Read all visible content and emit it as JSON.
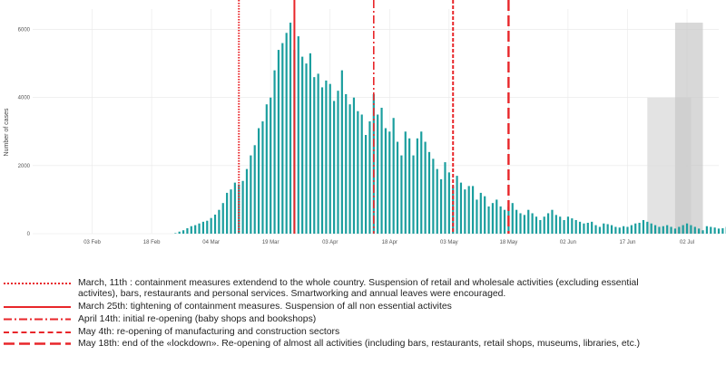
{
  "chart_data": {
    "type": "bar",
    "ylabel": "Number of cases",
    "ylim": [
      0,
      6600
    ],
    "yticks": [
      0,
      2000,
      4000,
      6000
    ],
    "yticklabels": [
      "0",
      "2000",
      "4000",
      "6000"
    ],
    "x_start": "2020-02-03",
    "xticks": [
      "2020-02-03",
      "2020-02-18",
      "2020-03-04",
      "2020-03-19",
      "2020-04-03",
      "2020-04-18",
      "2020-05-03",
      "2020-05-18",
      "2020-06-02",
      "2020-06-17",
      "2020-07-02"
    ],
    "xticklabels": [
      "03 Feb",
      "18 Feb",
      "04 Mar",
      "19 Mar",
      "03 Apr",
      "18 Apr",
      "03 May",
      "18 May",
      "02 Jun",
      "17 Jun",
      "02 Jul"
    ],
    "xlim": [
      "2020-01-19",
      "2020-07-10"
    ],
    "bar_color": "#1a9e9e",
    "series": [
      {
        "x_start": "2020-02-24",
        "values": [
          15,
          60,
          100,
          160,
          220,
          250,
          300,
          350,
          380,
          460,
          560,
          700,
          900,
          1200,
          1300,
          1500,
          1450,
          1550,
          1900,
          2300,
          2600,
          3100,
          3300,
          3800,
          4000,
          4800,
          5400,
          5600,
          5900,
          6200,
          5400,
          5800,
          5200,
          5000,
          5300,
          4600,
          4700,
          4300,
          4500,
          4400,
          3900,
          4200,
          4800,
          4100,
          3800,
          4000,
          3600,
          3500,
          2900,
          3300,
          4100,
          3500,
          3700,
          3100,
          3000,
          3400,
          2700,
          2300,
          3000,
          2800,
          2300,
          2800,
          3000,
          2700,
          2400,
          2200,
          1900,
          1600,
          2100,
          1800,
          1400,
          1700,
          1500,
          1300,
          1400,
          1400,
          1000,
          1200,
          1100,
          800,
          900,
          1000,
          800,
          700,
          800,
          900,
          700,
          600,
          550,
          700,
          600,
          500,
          400,
          500,
          600,
          700,
          550,
          500,
          400,
          500,
          450,
          400,
          350,
          300,
          320,
          350,
          250,
          200,
          300,
          280,
          250,
          200,
          180,
          220,
          200,
          250,
          300,
          320,
          400,
          350,
          300,
          250,
          200,
          220,
          250,
          200,
          150,
          200,
          250,
          300,
          250,
          200,
          150,
          100,
          220,
          200,
          180,
          150,
          160,
          200,
          180,
          130,
          120
        ]
      }
    ],
    "shaded_regions": [
      {
        "x_start": "2020-06-22",
        "x_end": "2020-07-03",
        "y_top": 4000
      },
      {
        "x_start": "2020-06-29",
        "x_end": "2020-07-06",
        "y_top": 6200
      }
    ],
    "event_lines": [
      {
        "date": "2020-03-11",
        "style": "dotted",
        "color": "#e8262a"
      },
      {
        "date": "2020-03-25",
        "style": "solid",
        "color": "#e8262a"
      },
      {
        "date": "2020-04-14",
        "style": "dashdot",
        "color": "#e8262a"
      },
      {
        "date": "2020-05-04",
        "style": "dashed-short",
        "color": "#e8262a"
      },
      {
        "date": "2020-05-18",
        "style": "dashed-long",
        "color": "#e8262a"
      }
    ]
  },
  "legend": [
    {
      "style": "dotted",
      "line1": "March, 11th : containment measures extendend to the whole country. Suspension of retail and wholesale activities (excluding essential",
      "line2": "activites), bars, restaurants and personal services. Smartworking and annual leaves were encouraged."
    },
    {
      "style": "solid",
      "line1": "March 25th: tightening of containment measures. Suspension of all non essential activites",
      "line2": ""
    },
    {
      "style": "dashdot",
      "line1": "April 14th: initial re-opening (baby shops and bookshops)",
      "line2": ""
    },
    {
      "style": "dashed-short",
      "line1": "May 4th: re-opening of manufacturing and construction sectors",
      "line2": ""
    },
    {
      "style": "dashed-long",
      "line1": "May 18th: end of the «lockdown».  Re-opening of almost all activities (including bars, restaurants, retail shops, museums, libraries, etc.)",
      "line2": ""
    }
  ]
}
